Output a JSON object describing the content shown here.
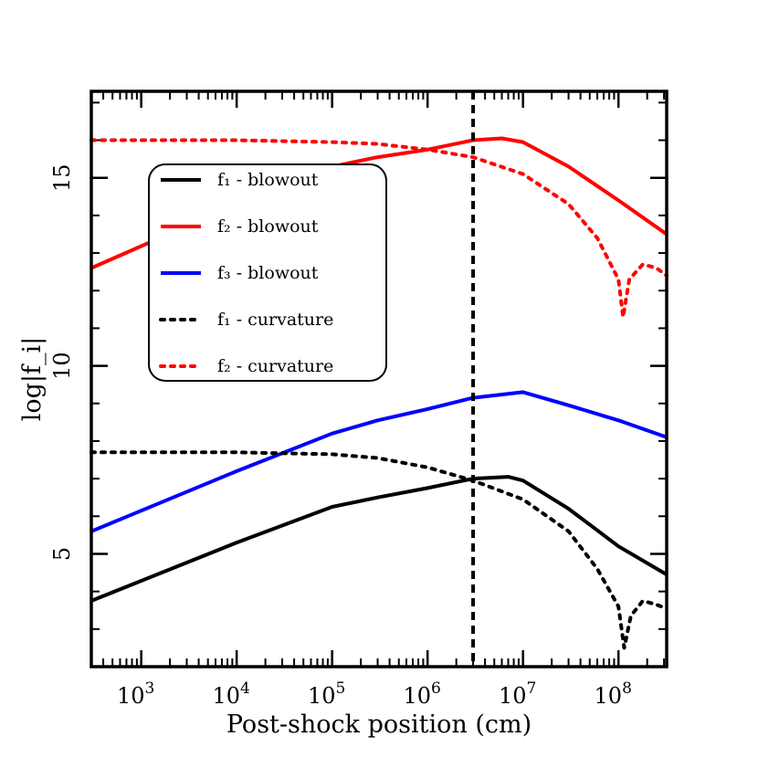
{
  "chart_data": {
    "type": "line",
    "xscale": "log",
    "xlim": [
      300,
      320000000
    ],
    "ylim": [
      2,
      17.3
    ],
    "xlabel": "Post-shock position (cm)",
    "ylabel": "log|f_i|",
    "x_ticks": [
      {
        "value": 1000,
        "base": "10",
        "exp": "3"
      },
      {
        "value": 10000,
        "base": "10",
        "exp": "4"
      },
      {
        "value": 100000,
        "base": "10",
        "exp": "5"
      },
      {
        "value": 1000000,
        "base": "10",
        "exp": "6"
      },
      {
        "value": 10000000,
        "base": "10",
        "exp": "7"
      },
      {
        "value": 100000000,
        "base": "10",
        "exp": "8"
      }
    ],
    "y_ticks": [
      5,
      10,
      15
    ],
    "grid": false,
    "legend_placement": "upper-left",
    "vline": {
      "x": 3000000,
      "style": "dashed",
      "color": "#000000"
    },
    "series": [
      {
        "name": "f₁ - blowout",
        "key": "f1-blowout",
        "color": "#000000",
        "style": "solid",
        "points": [
          [
            300,
            3.75
          ],
          [
            10000,
            5.3
          ],
          [
            100000,
            6.25
          ],
          [
            300000,
            6.5
          ],
          [
            1000000,
            6.75
          ],
          [
            3000000,
            7.0
          ],
          [
            7000000,
            7.05
          ],
          [
            10000000,
            6.95
          ],
          [
            30000000,
            6.2
          ],
          [
            100000000,
            5.2
          ],
          [
            320000000,
            4.45
          ]
        ]
      },
      {
        "name": "f₂ - blowout",
        "key": "f2-blowout",
        "color": "#ff0000",
        "style": "solid",
        "points": [
          [
            300,
            12.6
          ],
          [
            10000,
            14.3
          ],
          [
            100000,
            15.3
          ],
          [
            300000,
            15.55
          ],
          [
            1000000,
            15.75
          ],
          [
            3000000,
            16.0
          ],
          [
            6000000,
            16.05
          ],
          [
            10000000,
            15.95
          ],
          [
            30000000,
            15.3
          ],
          [
            100000000,
            14.4
          ],
          [
            320000000,
            13.5
          ]
        ]
      },
      {
        "name": "f₃ - blowout",
        "key": "f3-blowout",
        "color": "#0000ff",
        "style": "solid",
        "points": [
          [
            300,
            5.6
          ],
          [
            10000,
            7.2
          ],
          [
            100000,
            8.2
          ],
          [
            300000,
            8.55
          ],
          [
            1000000,
            8.85
          ],
          [
            3000000,
            9.15
          ],
          [
            10000000,
            9.3
          ],
          [
            30000000,
            8.95
          ],
          [
            100000000,
            8.55
          ],
          [
            320000000,
            8.1
          ]
        ]
      },
      {
        "name": "f₁ - curvature",
        "key": "f1-curvature",
        "color": "#000000",
        "style": "dotted",
        "points": [
          [
            300,
            7.7
          ],
          [
            10000,
            7.7
          ],
          [
            100000,
            7.65
          ],
          [
            300000,
            7.55
          ],
          [
            1000000,
            7.3
          ],
          [
            3000000,
            6.95
          ],
          [
            10000000,
            6.45
          ],
          [
            30000000,
            5.6
          ],
          [
            60000000,
            4.6
          ],
          [
            100000000,
            3.6
          ],
          [
            115000000,
            2.5
          ],
          [
            135000000,
            3.35
          ],
          [
            180000000,
            3.75
          ],
          [
            250000000,
            3.65
          ],
          [
            320000000,
            3.55
          ]
        ]
      },
      {
        "name": "f₂ - curvature",
        "key": "f2-curvature",
        "color": "#ff0000",
        "style": "dotted",
        "points": [
          [
            300,
            16.0
          ],
          [
            10000,
            16.0
          ],
          [
            100000,
            15.95
          ],
          [
            300000,
            15.9
          ],
          [
            1000000,
            15.75
          ],
          [
            3000000,
            15.55
          ],
          [
            10000000,
            15.1
          ],
          [
            30000000,
            14.3
          ],
          [
            60000000,
            13.4
          ],
          [
            100000000,
            12.3
          ],
          [
            112000000,
            11.3
          ],
          [
            130000000,
            12.3
          ],
          [
            180000000,
            12.7
          ],
          [
            250000000,
            12.6
          ],
          [
            320000000,
            12.4
          ]
        ]
      }
    ]
  }
}
